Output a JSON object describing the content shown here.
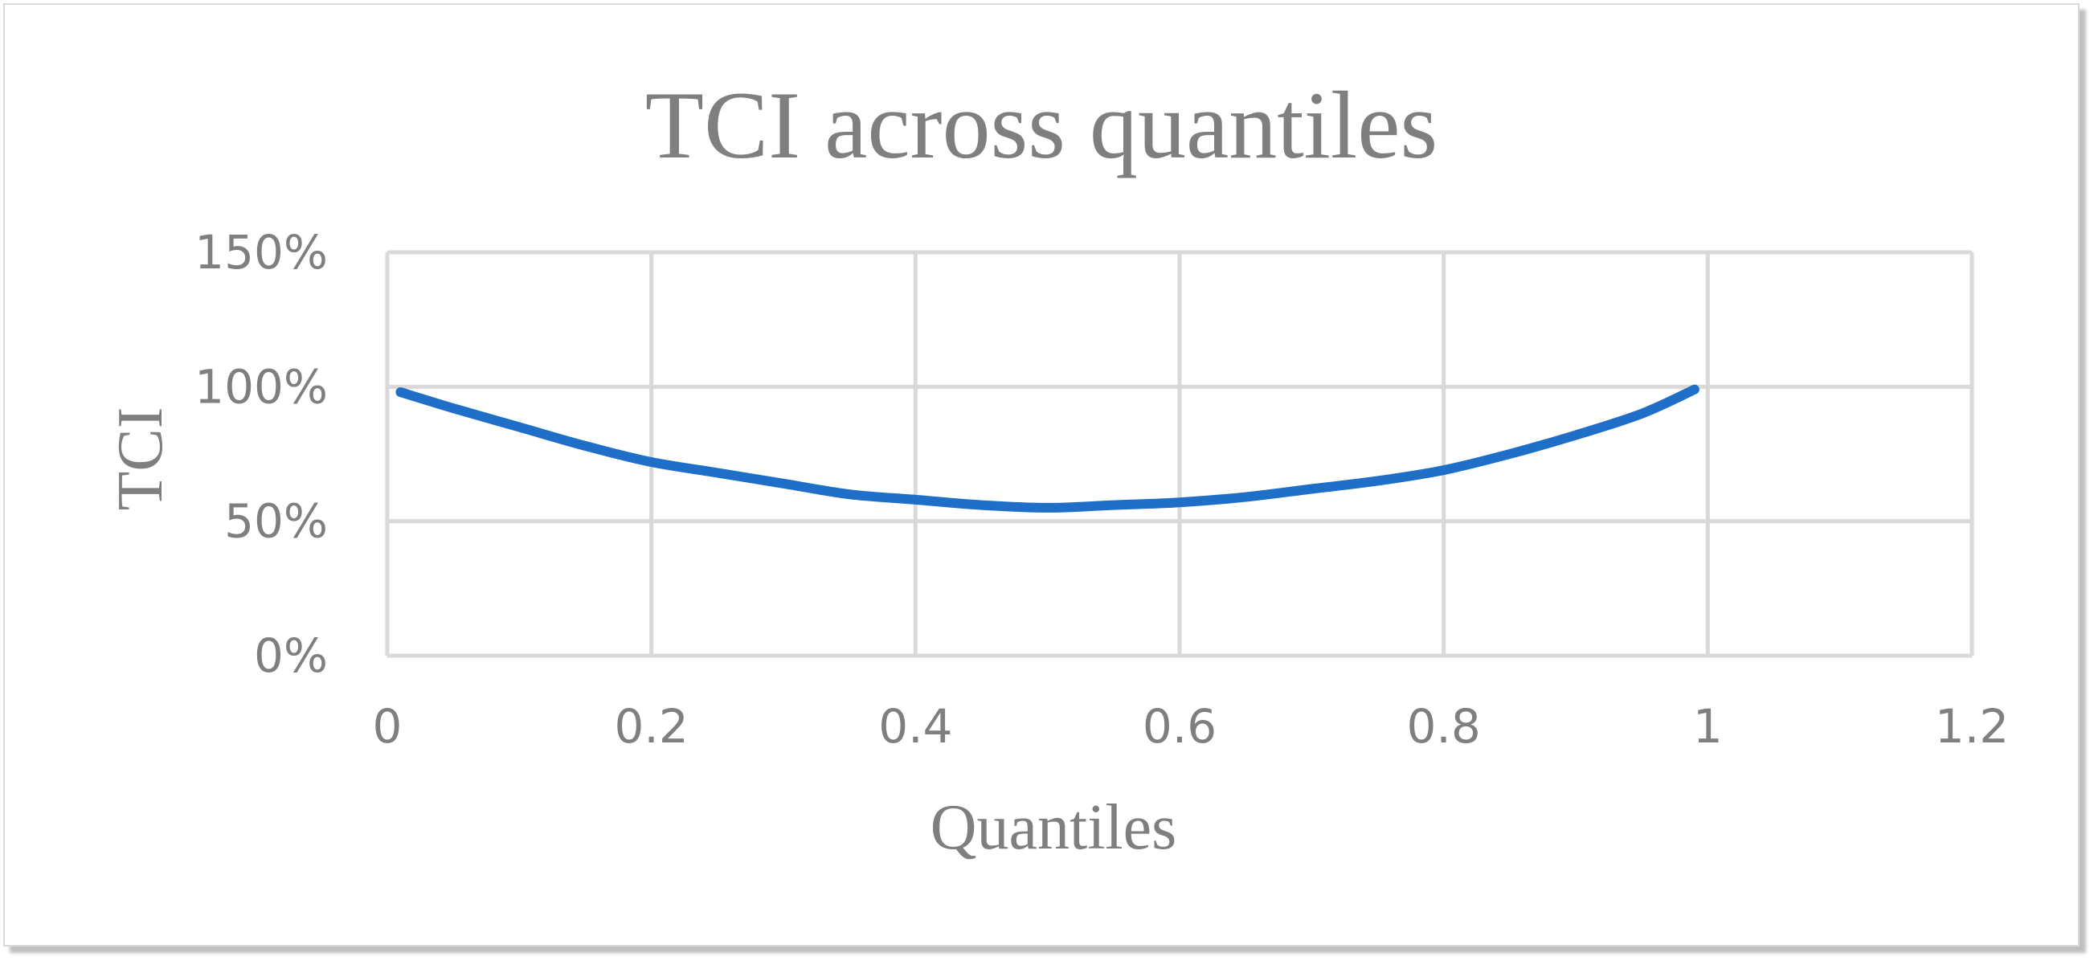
{
  "chart_data": {
    "type": "line",
    "title": "TCI across quantiles",
    "xlabel": "Quantiles",
    "ylabel": "TCI",
    "xlim": [
      0,
      1.2
    ],
    "ylim": [
      0,
      1.5
    ],
    "x_ticks": [
      "0",
      "0.2",
      "0.4",
      "0.6",
      "0.8",
      "1",
      "1.2"
    ],
    "y_ticks": [
      "0%",
      "50%",
      "100%",
      "150%"
    ],
    "grid": true,
    "legend": "none",
    "line_color": "#1f6fc9",
    "series": [
      {
        "x": [
          0.01,
          0.05,
          0.1,
          0.15,
          0.2,
          0.25,
          0.3,
          0.35,
          0.4,
          0.45,
          0.5,
          0.55,
          0.6,
          0.65,
          0.7,
          0.75,
          0.8,
          0.85,
          0.9,
          0.95,
          0.99
        ],
        "values": [
          0.98,
          0.92,
          0.85,
          0.78,
          0.72,
          0.68,
          0.64,
          0.6,
          0.58,
          0.56,
          0.55,
          0.56,
          0.57,
          0.59,
          0.62,
          0.65,
          0.69,
          0.75,
          0.82,
          0.9,
          0.99
        ]
      }
    ]
  }
}
